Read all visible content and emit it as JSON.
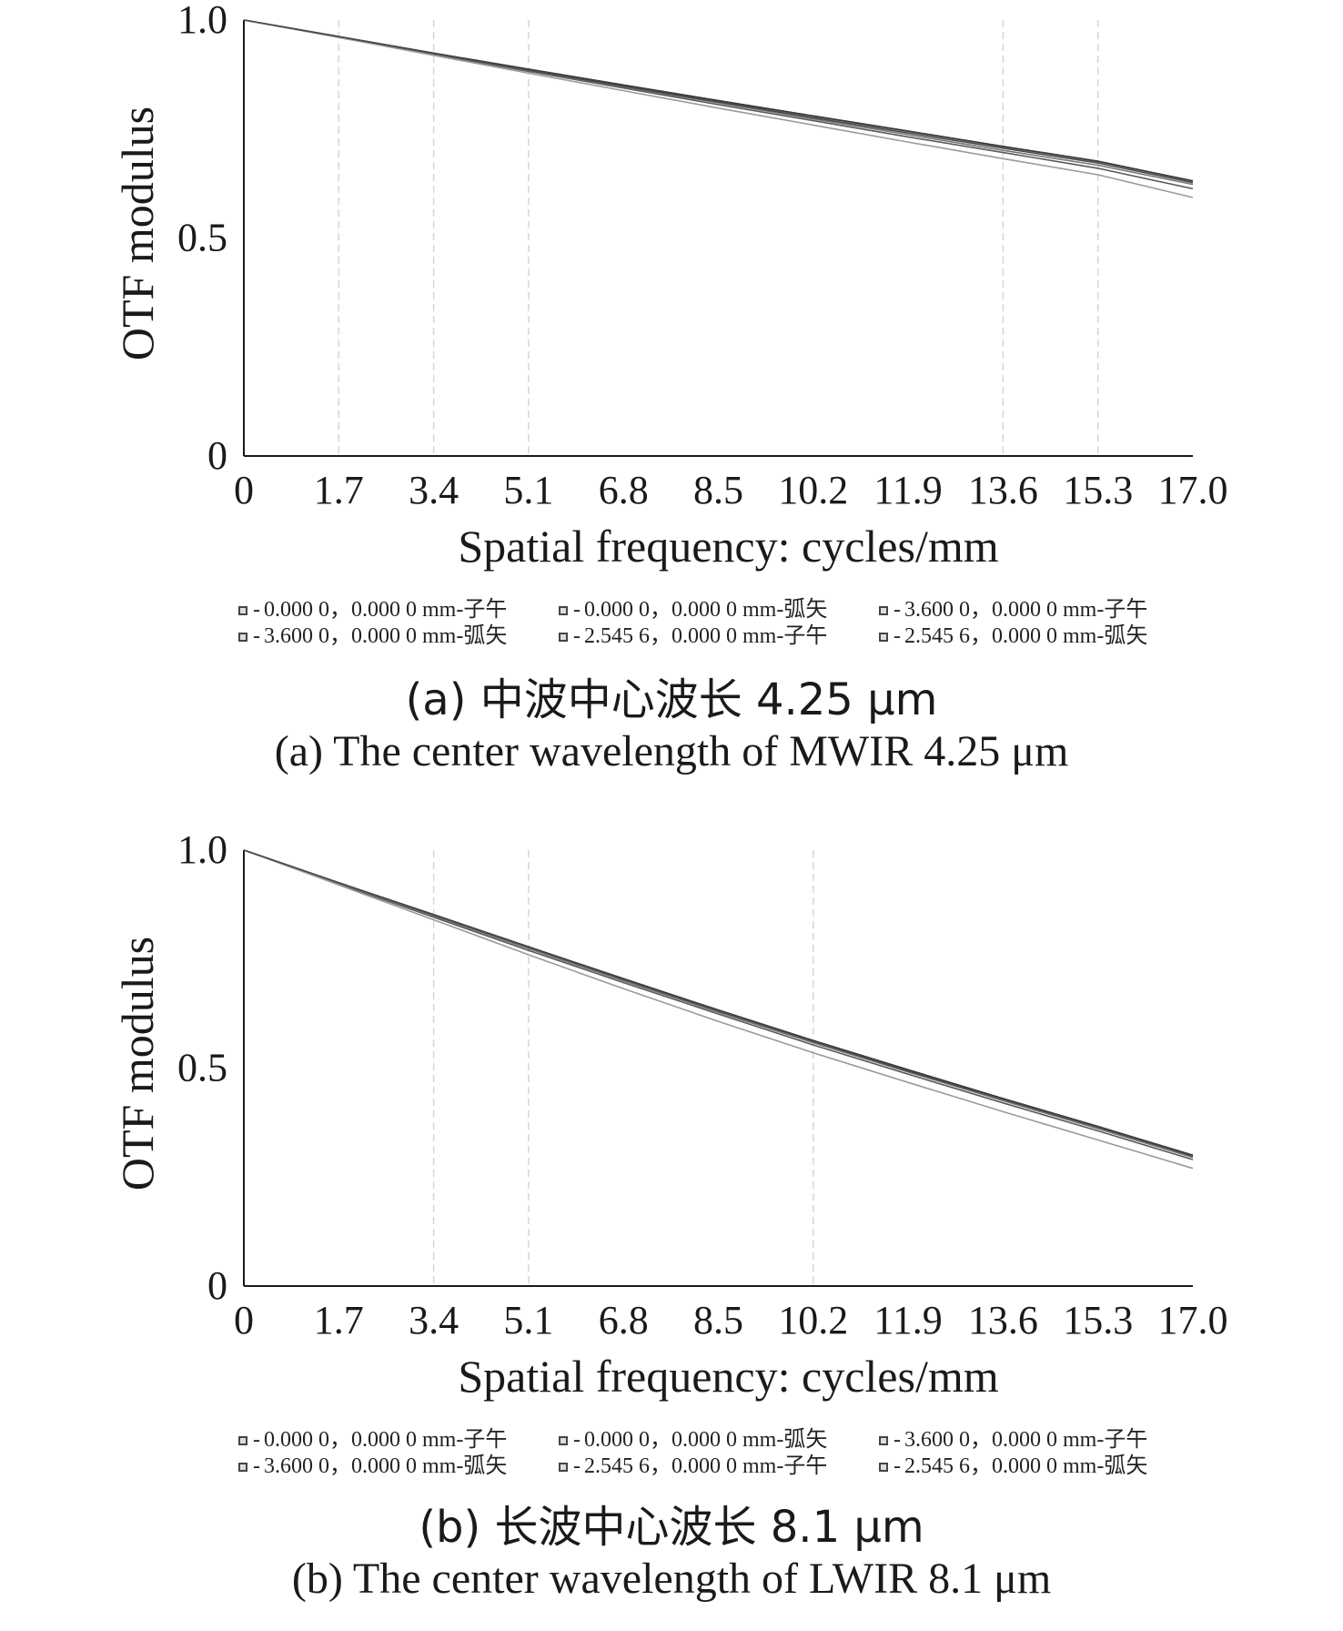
{
  "chart_data": [
    {
      "type": "line",
      "panel": "a",
      "xlabel": "Spatial frequency: cycles/mm",
      "ylabel": "OTF modulus",
      "xlim": [
        0,
        17.0
      ],
      "ylim": [
        0,
        1.0
      ],
      "x_ticks": [
        "0",
        "1.7",
        "3.4",
        "5.1",
        "6.8",
        "8.5",
        "10.2",
        "11.9",
        "13.6",
        "15.3",
        "17.0"
      ],
      "y_ticks": [
        "0",
        "0.5",
        "1.0"
      ],
      "x": [
        0,
        1.7,
        3.4,
        5.1,
        6.8,
        8.5,
        10.2,
        11.9,
        13.6,
        15.3,
        17.0
      ],
      "series": [
        {
          "name": "0.000 0，0.000 0 mm-子午",
          "values": [
            1.0,
            0.962,
            0.924,
            0.887,
            0.851,
            0.815,
            0.78,
            0.745,
            0.71,
            0.676,
            0.631
          ]
        },
        {
          "name": "0.000 0，0.000 0 mm-弧矢",
          "values": [
            1.0,
            0.962,
            0.924,
            0.887,
            0.851,
            0.815,
            0.78,
            0.745,
            0.71,
            0.676,
            0.631
          ]
        },
        {
          "name": "3.600 0，0.000 0 mm-子午",
          "values": [
            1.0,
            0.961,
            0.921,
            0.882,
            0.844,
            0.806,
            0.769,
            0.732,
            0.696,
            0.66,
            0.613
          ]
        },
        {
          "name": "3.600 0，0.000 0 mm-弧矢",
          "values": [
            1.0,
            0.961,
            0.922,
            0.884,
            0.847,
            0.81,
            0.773,
            0.737,
            0.701,
            0.667,
            0.623
          ]
        },
        {
          "name": "2.545 6，0.000 0 mm-子午",
          "values": [
            1.0,
            0.96,
            0.919,
            0.878,
            0.838,
            0.798,
            0.759,
            0.72,
            0.682,
            0.645,
            0.593
          ]
        },
        {
          "name": "2.545 6，0.000 0 mm-弧矢",
          "values": [
            1.0,
            0.962,
            0.923,
            0.885,
            0.848,
            0.812,
            0.776,
            0.741,
            0.706,
            0.672,
            0.627
          ]
        }
      ],
      "caption_cn": "(a) 中波中心波长 4.25 μm",
      "caption_en": "(a) The center wavelength of MWIR 4.25 μm"
    },
    {
      "type": "line",
      "panel": "b",
      "xlabel": "Spatial frequency: cycles/mm",
      "ylabel": "OTF modulus",
      "xlim": [
        0,
        17.0
      ],
      "ylim": [
        0,
        1.0
      ],
      "x_ticks": [
        "0",
        "1.7",
        "3.4",
        "5.1",
        "6.8",
        "8.5",
        "10.2",
        "11.9",
        "13.6",
        "15.3",
        "17.0"
      ],
      "y_ticks": [
        "0",
        "0.5",
        "1.0"
      ],
      "x": [
        0,
        1.7,
        3.4,
        5.1,
        6.8,
        8.5,
        10.2,
        11.9,
        13.6,
        15.3,
        17.0
      ],
      "series": [
        {
          "name": "0.000 0，0.000 0 mm-子午",
          "values": [
            1.0,
            0.925,
            0.852,
            0.778,
            0.705,
            0.633,
            0.563,
            0.496,
            0.43,
            0.366,
            0.3
          ]
        },
        {
          "name": "0.000 0，0.000 0 mm-弧矢",
          "values": [
            1.0,
            0.925,
            0.852,
            0.778,
            0.705,
            0.633,
            0.563,
            0.496,
            0.43,
            0.366,
            0.3
          ]
        },
        {
          "name": "3.600 0，0.000 0 mm-子午",
          "values": [
            1.0,
            0.922,
            0.846,
            0.77,
            0.696,
            0.624,
            0.553,
            0.486,
            0.42,
            0.356,
            0.29
          ]
        },
        {
          "name": "3.600 0，0.000 0 mm-弧矢",
          "values": [
            1.0,
            0.924,
            0.849,
            0.774,
            0.7,
            0.628,
            0.558,
            0.491,
            0.425,
            0.361,
            0.295
          ]
        },
        {
          "name": "2.545 6，0.000 0 mm-子午",
          "values": [
            1.0,
            0.92,
            0.84,
            0.76,
            0.682,
            0.607,
            0.535,
            0.467,
            0.4,
            0.335,
            0.27
          ]
        },
        {
          "name": "2.545 6，0.000 0 mm-弧矢",
          "values": [
            1.0,
            0.925,
            0.851,
            0.777,
            0.703,
            0.631,
            0.561,
            0.493,
            0.428,
            0.364,
            0.298
          ]
        }
      ],
      "caption_cn": "(b) 长波中心波长 8.1 μm",
      "caption_en": "(b) The center wavelength of LWIR 8.1 μm"
    }
  ],
  "style": {
    "axis_color": "#1a1a1a",
    "grid_color": "#d6d6d6",
    "series_colors": [
      "#1a1a1a",
      "#3a3a3a",
      "#5a5a5a",
      "#777777",
      "#9a9a9a",
      "#4a4a4a"
    ]
  }
}
